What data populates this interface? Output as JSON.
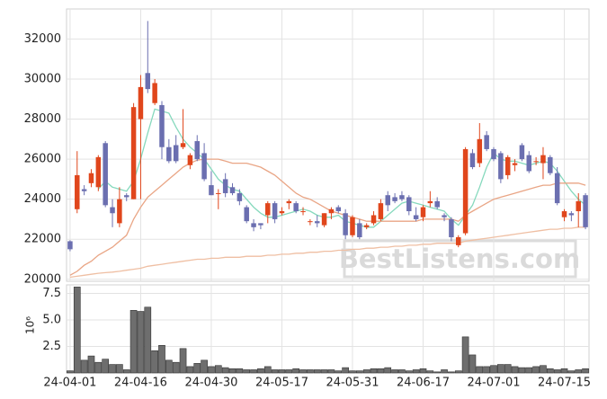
{
  "chart_data": [
    {
      "type": "candlestick",
      "open": [
        21900,
        23500,
        24500,
        24800,
        24600,
        26800,
        23600,
        22800,
        24200,
        24000,
        28000,
        30300,
        28800,
        28700,
        26600,
        26700,
        26600,
        25700,
        26900,
        26300,
        24700,
        24300,
        25000,
        24600,
        24300,
        23600,
        22800,
        22800,
        23200,
        23800,
        23300,
        23800,
        23800,
        23400,
        22900,
        22900,
        22700,
        23300,
        23600,
        23300,
        22200,
        22800,
        22600,
        22800,
        23000,
        24200,
        24100,
        24200,
        24100,
        23200,
        23100,
        23800,
        23900,
        23200,
        23000,
        21700,
        22300,
        26300,
        25800,
        27200,
        26500,
        26300,
        25200,
        25700,
        26700,
        26200,
        25900,
        25800,
        26100,
        25300,
        23100,
        23300,
        23400,
        24200
      ],
      "high": [
        21950,
        26400,
        24700,
        25500,
        26200,
        26900,
        24000,
        24600,
        24300,
        28800,
        30200,
        32900,
        30000,
        28900,
        27000,
        27200,
        28500,
        26300,
        27200,
        26800,
        25400,
        24500,
        25300,
        24800,
        24500,
        23700,
        23000,
        22800,
        23900,
        23900,
        23600,
        24000,
        23900,
        23600,
        23000,
        23200,
        23300,
        23600,
        23700,
        23500,
        23200,
        23000,
        22800,
        23400,
        24000,
        24400,
        24300,
        24400,
        24200,
        23600,
        23700,
        24400,
        24100,
        23300,
        23100,
        22200,
        26600,
        26500,
        27800,
        27400,
        26600,
        26400,
        26200,
        26000,
        26800,
        26400,
        26100,
        26600,
        26200,
        25600,
        23500,
        23400,
        24300,
        24300
      ],
      "low": [
        21400,
        23300,
        24200,
        24600,
        24400,
        23600,
        22600,
        22600,
        23900,
        24000,
        24000,
        29300,
        28700,
        26000,
        25800,
        25800,
        26500,
        25500,
        25900,
        24900,
        24200,
        23500,
        24100,
        24200,
        23700,
        22800,
        22400,
        22500,
        22800,
        22800,
        23200,
        23500,
        23300,
        23200,
        22700,
        22600,
        22600,
        23000,
        23300,
        22000,
        22100,
        22000,
        22500,
        22700,
        22900,
        23400,
        23800,
        23900,
        23200,
        22900,
        22900,
        23600,
        23500,
        22900,
        21900,
        21600,
        22200,
        25500,
        25600,
        26400,
        25900,
        24800,
        25000,
        25400,
        25900,
        25300,
        25700,
        25000,
        25200,
        23700,
        22900,
        22900,
        22600,
        22500
      ],
      "close": [
        21500,
        25200,
        24400,
        25300,
        26100,
        23700,
        23300,
        24000,
        24100,
        28600,
        29600,
        29500,
        29800,
        26600,
        25900,
        25900,
        26800,
        26200,
        26000,
        25000,
        24200,
        24300,
        24300,
        24300,
        23900,
        22900,
        22600,
        22700,
        23800,
        23000,
        23400,
        23900,
        23400,
        23400,
        22900,
        22800,
        23300,
        23500,
        23400,
        22200,
        23100,
        22100,
        22700,
        23200,
        23800,
        23700,
        23900,
        24000,
        23400,
        23000,
        23600,
        23900,
        23600,
        23100,
        22100,
        22100,
        26500,
        25600,
        27000,
        26500,
        26000,
        25000,
        26100,
        25800,
        26000,
        25400,
        25900,
        26200,
        25300,
        23800,
        23400,
        23200,
        23900,
        22600
      ],
      "up_color": "#e0461c",
      "down_color": "#6b6fb0",
      "lines": [
        {
          "color": "#86d9bd",
          "values": [
            null,
            null,
            null,
            null,
            24500,
            24900,
            24600,
            24500,
            24400,
            24900,
            26000,
            27300,
            28500,
            28400,
            28300,
            27600,
            27000,
            26600,
            26300,
            26000,
            25500,
            25000,
            24700,
            24500,
            24400,
            24000,
            23600,
            23300,
            23100,
            23100,
            23200,
            23300,
            23400,
            23500,
            23400,
            23200,
            23100,
            23100,
            23200,
            22900,
            22800,
            22700,
            22600,
            22600,
            22900,
            23200,
            23500,
            23800,
            23900,
            23800,
            23700,
            23600,
            23500,
            23400,
            23000,
            22700,
            23200,
            23700,
            24600,
            25600,
            26300,
            26000,
            25900,
            25900,
            25800,
            25700,
            25800,
            25900,
            25800,
            25400,
            24900,
            24400,
            24000,
            23700
          ]
        },
        {
          "color": "#e9a585",
          "values": [
            20200,
            20400,
            20700,
            20900,
            21200,
            21400,
            21600,
            21900,
            22200,
            23000,
            23600,
            24100,
            24400,
            24700,
            25000,
            25300,
            25600,
            25800,
            25950,
            26000,
            26000,
            26000,
            25900,
            25800,
            25800,
            25800,
            25700,
            25600,
            25400,
            25200,
            24900,
            24600,
            24300,
            24100,
            24000,
            23800,
            23600,
            23400,
            23300,
            23200,
            23100,
            23000,
            22900,
            22900,
            22900,
            22900,
            22900,
            22900,
            22900,
            22900,
            23000,
            23000,
            23000,
            23000,
            23000,
            22900,
            23200,
            23400,
            23600,
            23800,
            24000,
            24100,
            24200,
            24300,
            24400,
            24500,
            24600,
            24700,
            24700,
            24800,
            24800,
            24800,
            24800,
            24700
          ]
        },
        {
          "color": "#efbfa3",
          "values": [
            20100,
            20150,
            20200,
            20250,
            20300,
            20330,
            20360,
            20400,
            20450,
            20500,
            20550,
            20650,
            20700,
            20750,
            20800,
            20850,
            20900,
            20950,
            21000,
            21000,
            21050,
            21050,
            21100,
            21100,
            21100,
            21150,
            21150,
            21150,
            21200,
            21200,
            21250,
            21250,
            21300,
            21300,
            21350,
            21350,
            21400,
            21400,
            21450,
            21450,
            21500,
            21500,
            21550,
            21550,
            21600,
            21600,
            21650,
            21650,
            21700,
            21700,
            21750,
            21750,
            21800,
            21800,
            21800,
            21800,
            21900,
            21950,
            22000,
            22050,
            22100,
            22150,
            22200,
            22250,
            22300,
            22350,
            22400,
            22450,
            22500,
            22500,
            22550,
            22550,
            22600,
            22600
          ]
        }
      ],
      "ylim": [
        19900,
        33500
      ],
      "yticks": [
        20000,
        22000,
        24000,
        26000,
        28000,
        30000,
        32000
      ],
      "grid": true,
      "watermark": "BestListens.com"
    },
    {
      "type": "bar",
      "categories": [
        "24-04-01",
        null,
        null,
        null,
        null,
        null,
        null,
        null,
        null,
        null,
        "24-04-16",
        null,
        null,
        null,
        null,
        null,
        null,
        null,
        null,
        null,
        "24-04-30",
        null,
        null,
        null,
        null,
        null,
        null,
        null,
        null,
        null,
        "24-05-17",
        null,
        null,
        null,
        null,
        null,
        null,
        null,
        null,
        null,
        "24-05-31",
        null,
        null,
        null,
        null,
        null,
        null,
        null,
        null,
        null,
        "24-06-17",
        null,
        null,
        null,
        null,
        null,
        null,
        null,
        null,
        null,
        "24-07-01",
        null,
        null,
        null,
        null,
        null,
        null,
        null,
        null,
        null,
        "24-07-15",
        null,
        null,
        null
      ],
      "values": [
        0.2,
        8.1,
        1.2,
        1.6,
        1.0,
        1.3,
        0.8,
        0.8,
        0.3,
        5.9,
        5.8,
        6.2,
        2.1,
        2.6,
        1.2,
        1.0,
        2.3,
        0.6,
        0.9,
        1.2,
        0.6,
        0.7,
        0.5,
        0.4,
        0.4,
        0.3,
        0.3,
        0.4,
        0.6,
        0.3,
        0.3,
        0.3,
        0.4,
        0.3,
        0.3,
        0.3,
        0.3,
        0.3,
        0.2,
        0.5,
        0.2,
        0.2,
        0.3,
        0.4,
        0.4,
        0.5,
        0.3,
        0.3,
        0.2,
        0.3,
        0.4,
        0.2,
        0.1,
        0.3,
        0.1,
        0.2,
        3.4,
        1.7,
        0.6,
        0.6,
        0.7,
        0.8,
        0.8,
        0.6,
        0.5,
        0.5,
        0.6,
        0.7,
        0.4,
        0.3,
        0.4,
        0.2,
        0.3,
        0.4
      ],
      "color": "#6e6e6e",
      "ylabel": "10⁶",
      "ylim": [
        0,
        8.3
      ],
      "yticks": [
        2.5,
        {
          "value": 5,
          "label": "5.0"
        },
        7.5
      ],
      "grid": true
    }
  ]
}
